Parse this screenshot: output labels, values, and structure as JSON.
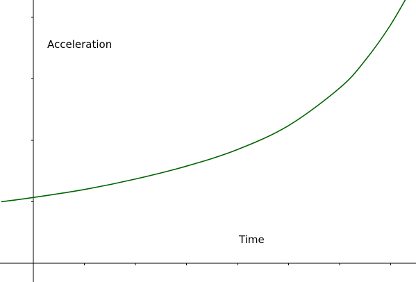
{
  "chart_data": {
    "type": "line",
    "title": "",
    "xlabel": "Time",
    "ylabel": "Acceleration",
    "xlim": [
      -0.63,
      7.5
    ],
    "ylim": [
      -0.3,
      4.3
    ],
    "grid": false,
    "x_ticks": [
      1,
      2,
      3,
      4,
      5,
      6,
      7
    ],
    "y_ticks": [
      1,
      2,
      3,
      4
    ],
    "series": [
      {
        "color": "#006400",
        "x": [
          -0.63,
          0,
          1,
          2,
          3,
          4,
          5,
          6,
          6.5,
          7,
          7.5
        ],
        "y": [
          1.0,
          1.07,
          1.2,
          1.37,
          1.58,
          1.85,
          2.24,
          2.85,
          3.3,
          3.88,
          4.6
        ]
      }
    ]
  }
}
